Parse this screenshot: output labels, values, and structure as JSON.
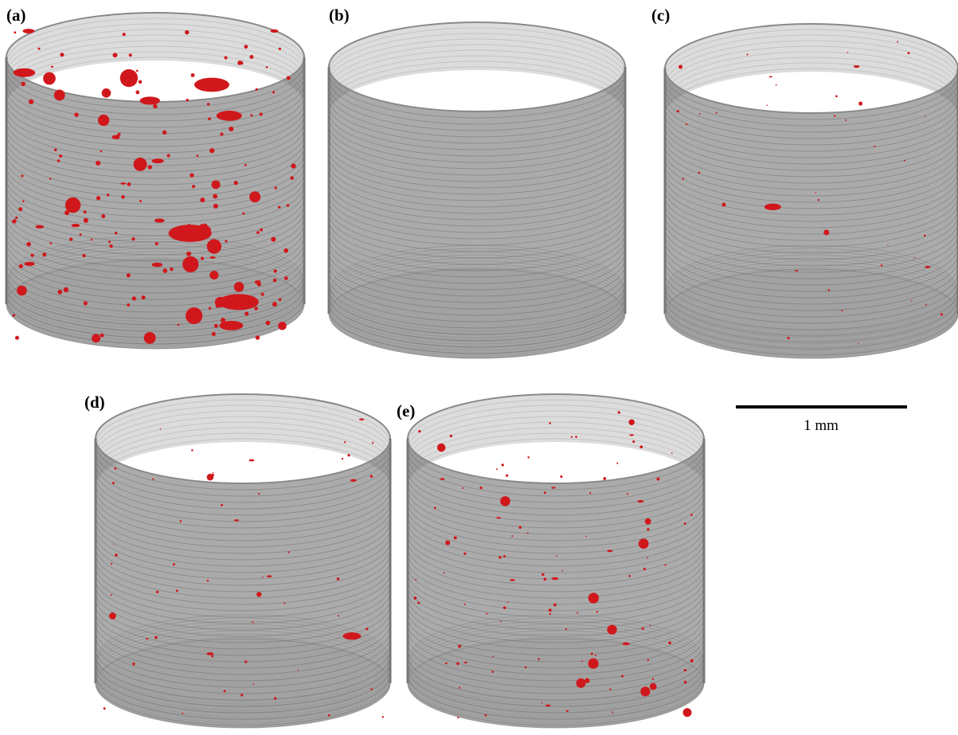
{
  "panels": [
    {
      "label": "(a)"
    },
    {
      "label": "(b)"
    },
    {
      "label": "(c)"
    },
    {
      "label": "(d)"
    },
    {
      "label": "(e)"
    }
  ],
  "scale_bar": {
    "label": "1 mm"
  }
}
